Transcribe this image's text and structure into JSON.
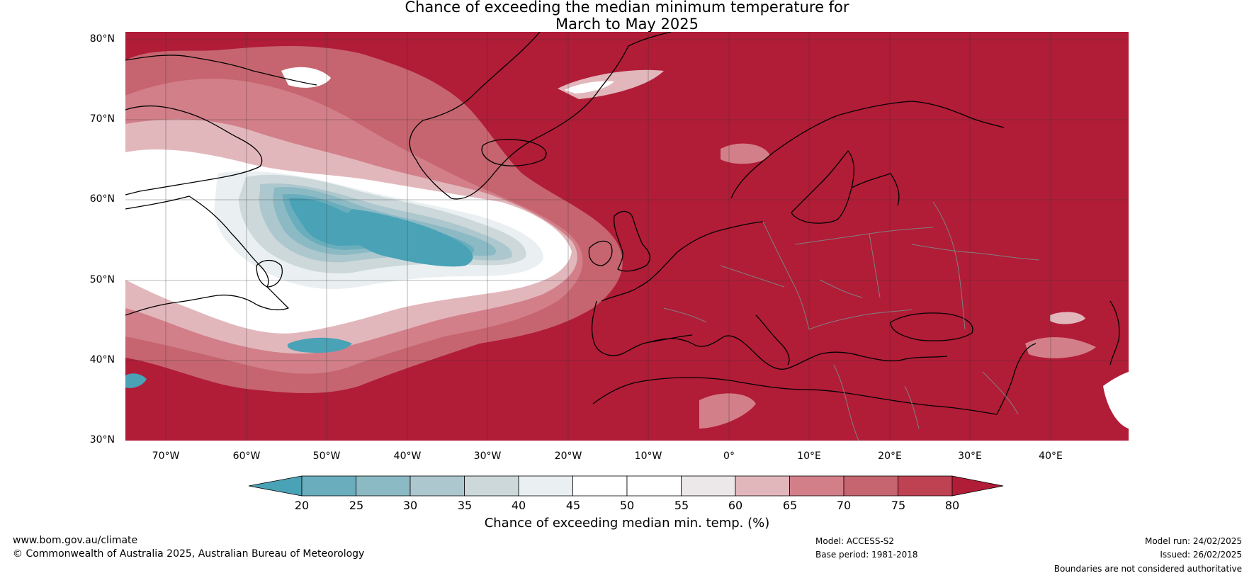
{
  "title": {
    "line1": "Chance of exceeding the median minimum temperature for",
    "line2": "March to May 2025"
  },
  "axes": {
    "lat_labels": [
      "80°N",
      "70°N",
      "60°N",
      "50°N",
      "40°N",
      "30°N"
    ],
    "lon_labels": [
      "70°W",
      "60°W",
      "50°W",
      "40°W",
      "30°W",
      "20°W",
      "10°W",
      "0°",
      "10°E",
      "20°E",
      "30°E",
      "40°E"
    ]
  },
  "map": {
    "region": "North Atlantic and Europe",
    "lat_range": [
      30,
      80
    ],
    "lon_range": [
      -75,
      50
    ],
    "background_color": "#b11c37"
  },
  "colorbar": {
    "ticks": [
      "20",
      "25",
      "30",
      "35",
      "40",
      "45",
      "50",
      "55",
      "60",
      "65",
      "70",
      "75",
      "80"
    ],
    "colors": [
      "#4aa2b6",
      "#6aaebe",
      "#8bbac5",
      "#acc7cd",
      "#cdd8da",
      "#eaf0f1",
      "#ffffff",
      "#ffffff",
      "#ece7e8",
      "#e2b7bc",
      "#d27f8a",
      "#c6656f",
      "#bf4253",
      "#b11c37"
    ],
    "title": "Chance of exceeding median min. temp. (%)"
  },
  "footer": {
    "website": "www.bom.gov.au/climate",
    "copyright": "© Commonwealth of Australia 2025, Australian Bureau of Meteorology",
    "model": "Model: ACCESS-S2",
    "base_period": "Base period: 1981-2018",
    "model_run": "Model run: 24/02/2025",
    "issued": "Issued: 26/02/2025",
    "disclaimer": "Boundaries are not considered authoritative"
  }
}
